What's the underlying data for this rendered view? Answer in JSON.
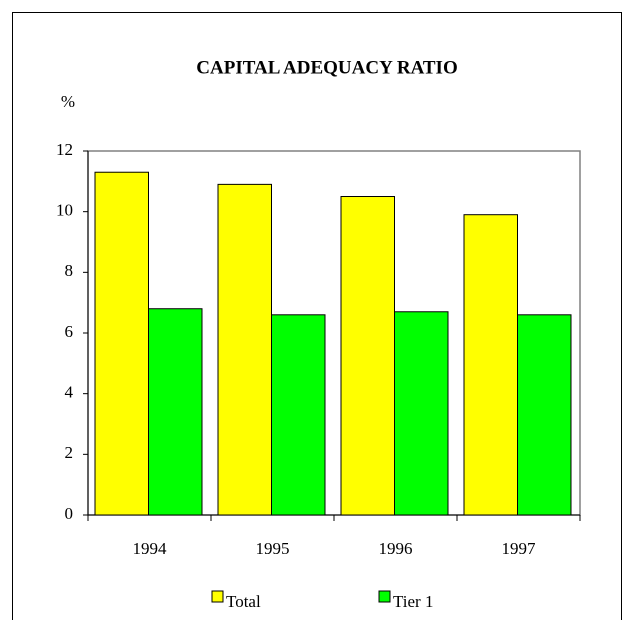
{
  "chart_data": {
    "type": "bar",
    "title": "CAPITAL ADEQUACY RATIO",
    "y_label": "%",
    "categories": [
      "1994",
      "1995",
      "1996",
      "1997"
    ],
    "series": [
      {
        "name": "Total",
        "color": "#ffff00",
        "values": [
          11.3,
          10.9,
          10.5,
          9.9
        ]
      },
      {
        "name": "Tier 1",
        "color": "#00ff00",
        "values": [
          6.8,
          6.6,
          6.7,
          6.6
        ]
      }
    ],
    "ylim": [
      0,
      12
    ],
    "yticks": [
      0,
      2,
      4,
      6,
      8,
      10,
      12
    ],
    "legend": "bottom"
  }
}
